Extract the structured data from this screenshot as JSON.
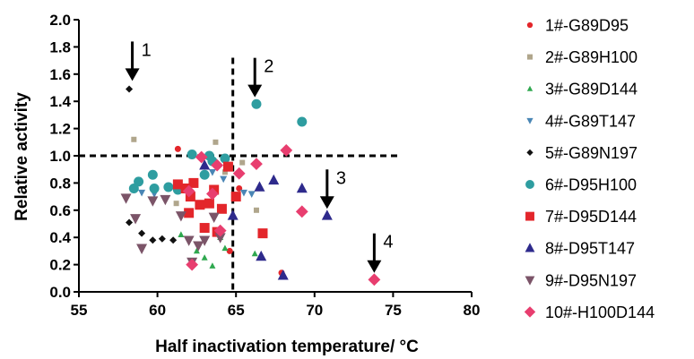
{
  "chart_data": {
    "type": "scatter",
    "title": "",
    "xlabel": "Half inactivation temperature/ °C",
    "ylabel": "Relative activity",
    "xlim": [
      55,
      80
    ],
    "ylim": [
      0.0,
      2.0
    ],
    "x_ticks": [
      "55",
      "60",
      "65",
      "70",
      "75",
      "80"
    ],
    "y_ticks": [
      "0.0",
      "0.2",
      "0.4",
      "0.6",
      "0.8",
      "1.0",
      "1.2",
      "1.4",
      "1.6",
      "1.8",
      "2.0"
    ],
    "x_tick_values": [
      55,
      60,
      65,
      70,
      75,
      80
    ],
    "y_tick_values": [
      0,
      0.2,
      0.4,
      0.6,
      0.8,
      1.0,
      1.2,
      1.4,
      1.6,
      1.8,
      2.0
    ],
    "grid": false,
    "legend_position": "right",
    "reference_lines": [
      {
        "orientation": "horizontal",
        "value": 1.0,
        "style": "dashed"
      },
      {
        "orientation": "vertical",
        "value": 64.8,
        "style": "dashed"
      }
    ],
    "annotations": [
      {
        "text": "1",
        "x": 58.4,
        "y": 1.55
      },
      {
        "text": "2",
        "x": 66.2,
        "y": 1.43
      },
      {
        "text": "3",
        "x": 70.8,
        "y": 0.61
      },
      {
        "text": "4",
        "x": 73.8,
        "y": 0.14
      }
    ],
    "series": [
      {
        "name": "1#-G89D95",
        "marker": "circle",
        "size": 3.5,
        "color": "#e3262b",
        "x": [
          61.3,
          64.6,
          65.2,
          67.9
        ],
        "y": [
          1.05,
          0.3,
          0.76,
          0.14
        ]
      },
      {
        "name": "2#-G89H100",
        "marker": "square",
        "size": 3,
        "color": "#b0a68c",
        "x": [
          58.5,
          61.2,
          63.7,
          64.3,
          65.4,
          66.3
        ],
        "y": [
          1.12,
          0.65,
          1.1,
          0.88,
          0.95,
          0.6
        ]
      },
      {
        "name": "3#-G89D144",
        "marker": "triangle",
        "size": 3.5,
        "color": "#2fa84f",
        "x": [
          61.5,
          62.5,
          63.0,
          63.5,
          64.0,
          64.3,
          66.2
        ],
        "y": [
          0.42,
          0.3,
          0.25,
          0.19,
          0.4,
          0.32,
          0.28
        ]
      },
      {
        "name": "4#-G89T147",
        "marker": "triangle-down",
        "size": 4,
        "color": "#4a86b5",
        "x": [
          59.0,
          59.8,
          63.5,
          64.2,
          65.5,
          66.0
        ],
        "y": [
          0.73,
          0.72,
          0.88,
          0.83,
          0.73,
          0.72
        ]
      },
      {
        "name": "5#-G89N197",
        "marker": "diamond",
        "size": 3.5,
        "color": "#111111",
        "x": [
          58.2,
          58.2,
          59.0,
          59.7,
          60.3,
          61.0
        ],
        "y": [
          1.49,
          0.51,
          0.43,
          0.38,
          0.39,
          0.38
        ]
      },
      {
        "name": "6#-D95H100",
        "marker": "circle",
        "size": 5.5,
        "color": "#2e9da0",
        "x": [
          58.5,
          58.8,
          59.7,
          59.8,
          60.7,
          61.3,
          62.2,
          63.0,
          63.3,
          63.5,
          64.3,
          66.3,
          69.2
        ],
        "y": [
          0.76,
          0.81,
          0.86,
          0.76,
          0.77,
          0.75,
          1.01,
          0.86,
          1.0,
          0.96,
          0.98,
          1.38,
          1.25
        ]
      },
      {
        "name": "7#-D95D144",
        "marker": "square",
        "size": 5.5,
        "color": "#e3262b",
        "x": [
          61.3,
          61.8,
          62.0,
          62.1,
          62.3,
          62.7,
          63.0,
          63.3,
          63.6,
          63.8,
          64.1,
          64.5,
          65.0,
          66.7
        ],
        "y": [
          0.79,
          0.76,
          0.58,
          0.7,
          0.8,
          0.64,
          0.47,
          0.65,
          0.75,
          0.44,
          0.61,
          0.92,
          0.7,
          0.43
        ]
      },
      {
        "name": "8#-D95T147",
        "marker": "triangle",
        "size": 6,
        "color": "#2e2a8c",
        "x": [
          63.0,
          64.8,
          66.5,
          66.6,
          67.4,
          68.0,
          69.2,
          70.8
        ],
        "y": [
          0.93,
          0.56,
          0.77,
          0.26,
          0.82,
          0.12,
          0.76,
          0.56
        ]
      },
      {
        "name": "9#-D95N197",
        "marker": "triangle-down",
        "size": 6,
        "color": "#7b5468",
        "x": [
          58.0,
          58.6,
          59.0,
          59.7,
          60.5,
          61.5,
          62.0,
          62.2,
          62.6,
          63.0,
          63.6,
          64.0
        ],
        "y": [
          0.69,
          0.54,
          0.32,
          0.67,
          0.68,
          0.56,
          0.38,
          0.22,
          0.34,
          0.38,
          0.55,
          0.4
        ]
      },
      {
        "name": "10#-H100D144",
        "marker": "diamond",
        "size": 6,
        "color": "#e83e6f",
        "x": [
          62.0,
          62.2,
          62.8,
          63.5,
          63.8,
          64.0,
          65.2,
          66.3,
          68.2,
          69.2,
          73.8
        ],
        "y": [
          0.74,
          0.2,
          0.99,
          0.72,
          0.93,
          0.45,
          0.87,
          0.94,
          1.04,
          0.59,
          0.09
        ]
      }
    ]
  }
}
